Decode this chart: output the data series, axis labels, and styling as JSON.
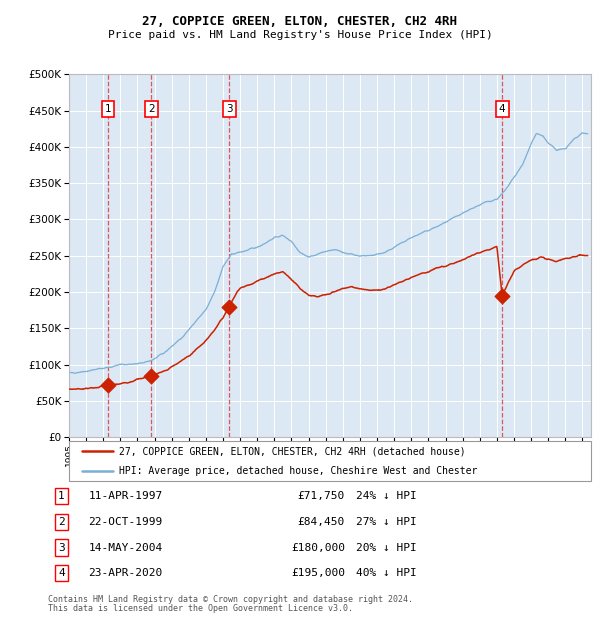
{
  "title1": "27, COPPICE GREEN, ELTON, CHESTER, CH2 4RH",
  "title2": "Price paid vs. HM Land Registry's House Price Index (HPI)",
  "legend1": "27, COPPICE GREEN, ELTON, CHESTER, CH2 4RH (detached house)",
  "legend2": "HPI: Average price, detached house, Cheshire West and Chester",
  "footer1": "Contains HM Land Registry data © Crown copyright and database right 2024.",
  "footer2": "This data is licensed under the Open Government Licence v3.0.",
  "transactions": [
    {
      "num": 1,
      "date": "11-APR-1997",
      "year": 1997.28,
      "price": 71750,
      "pct": "24% ↓ HPI"
    },
    {
      "num": 2,
      "date": "22-OCT-1999",
      "year": 1999.81,
      "price": 84450,
      "pct": "27% ↓ HPI"
    },
    {
      "num": 3,
      "date": "14-MAY-2004",
      "year": 2004.37,
      "price": 180000,
      "pct": "20% ↓ HPI"
    },
    {
      "num": 4,
      "date": "23-APR-2020",
      "year": 2020.31,
      "price": 195000,
      "pct": "40% ↓ HPI"
    }
  ],
  "hpi_color": "#7ab0d4",
  "price_color": "#cc2200",
  "plot_bg_color": "#dde8f5",
  "ylim": [
    0,
    500000
  ],
  "xlim_start": 1995.0,
  "xlim_end": 2025.5,
  "yticks": [
    0,
    50000,
    100000,
    150000,
    200000,
    250000,
    300000,
    350000,
    400000,
    450000,
    500000
  ]
}
